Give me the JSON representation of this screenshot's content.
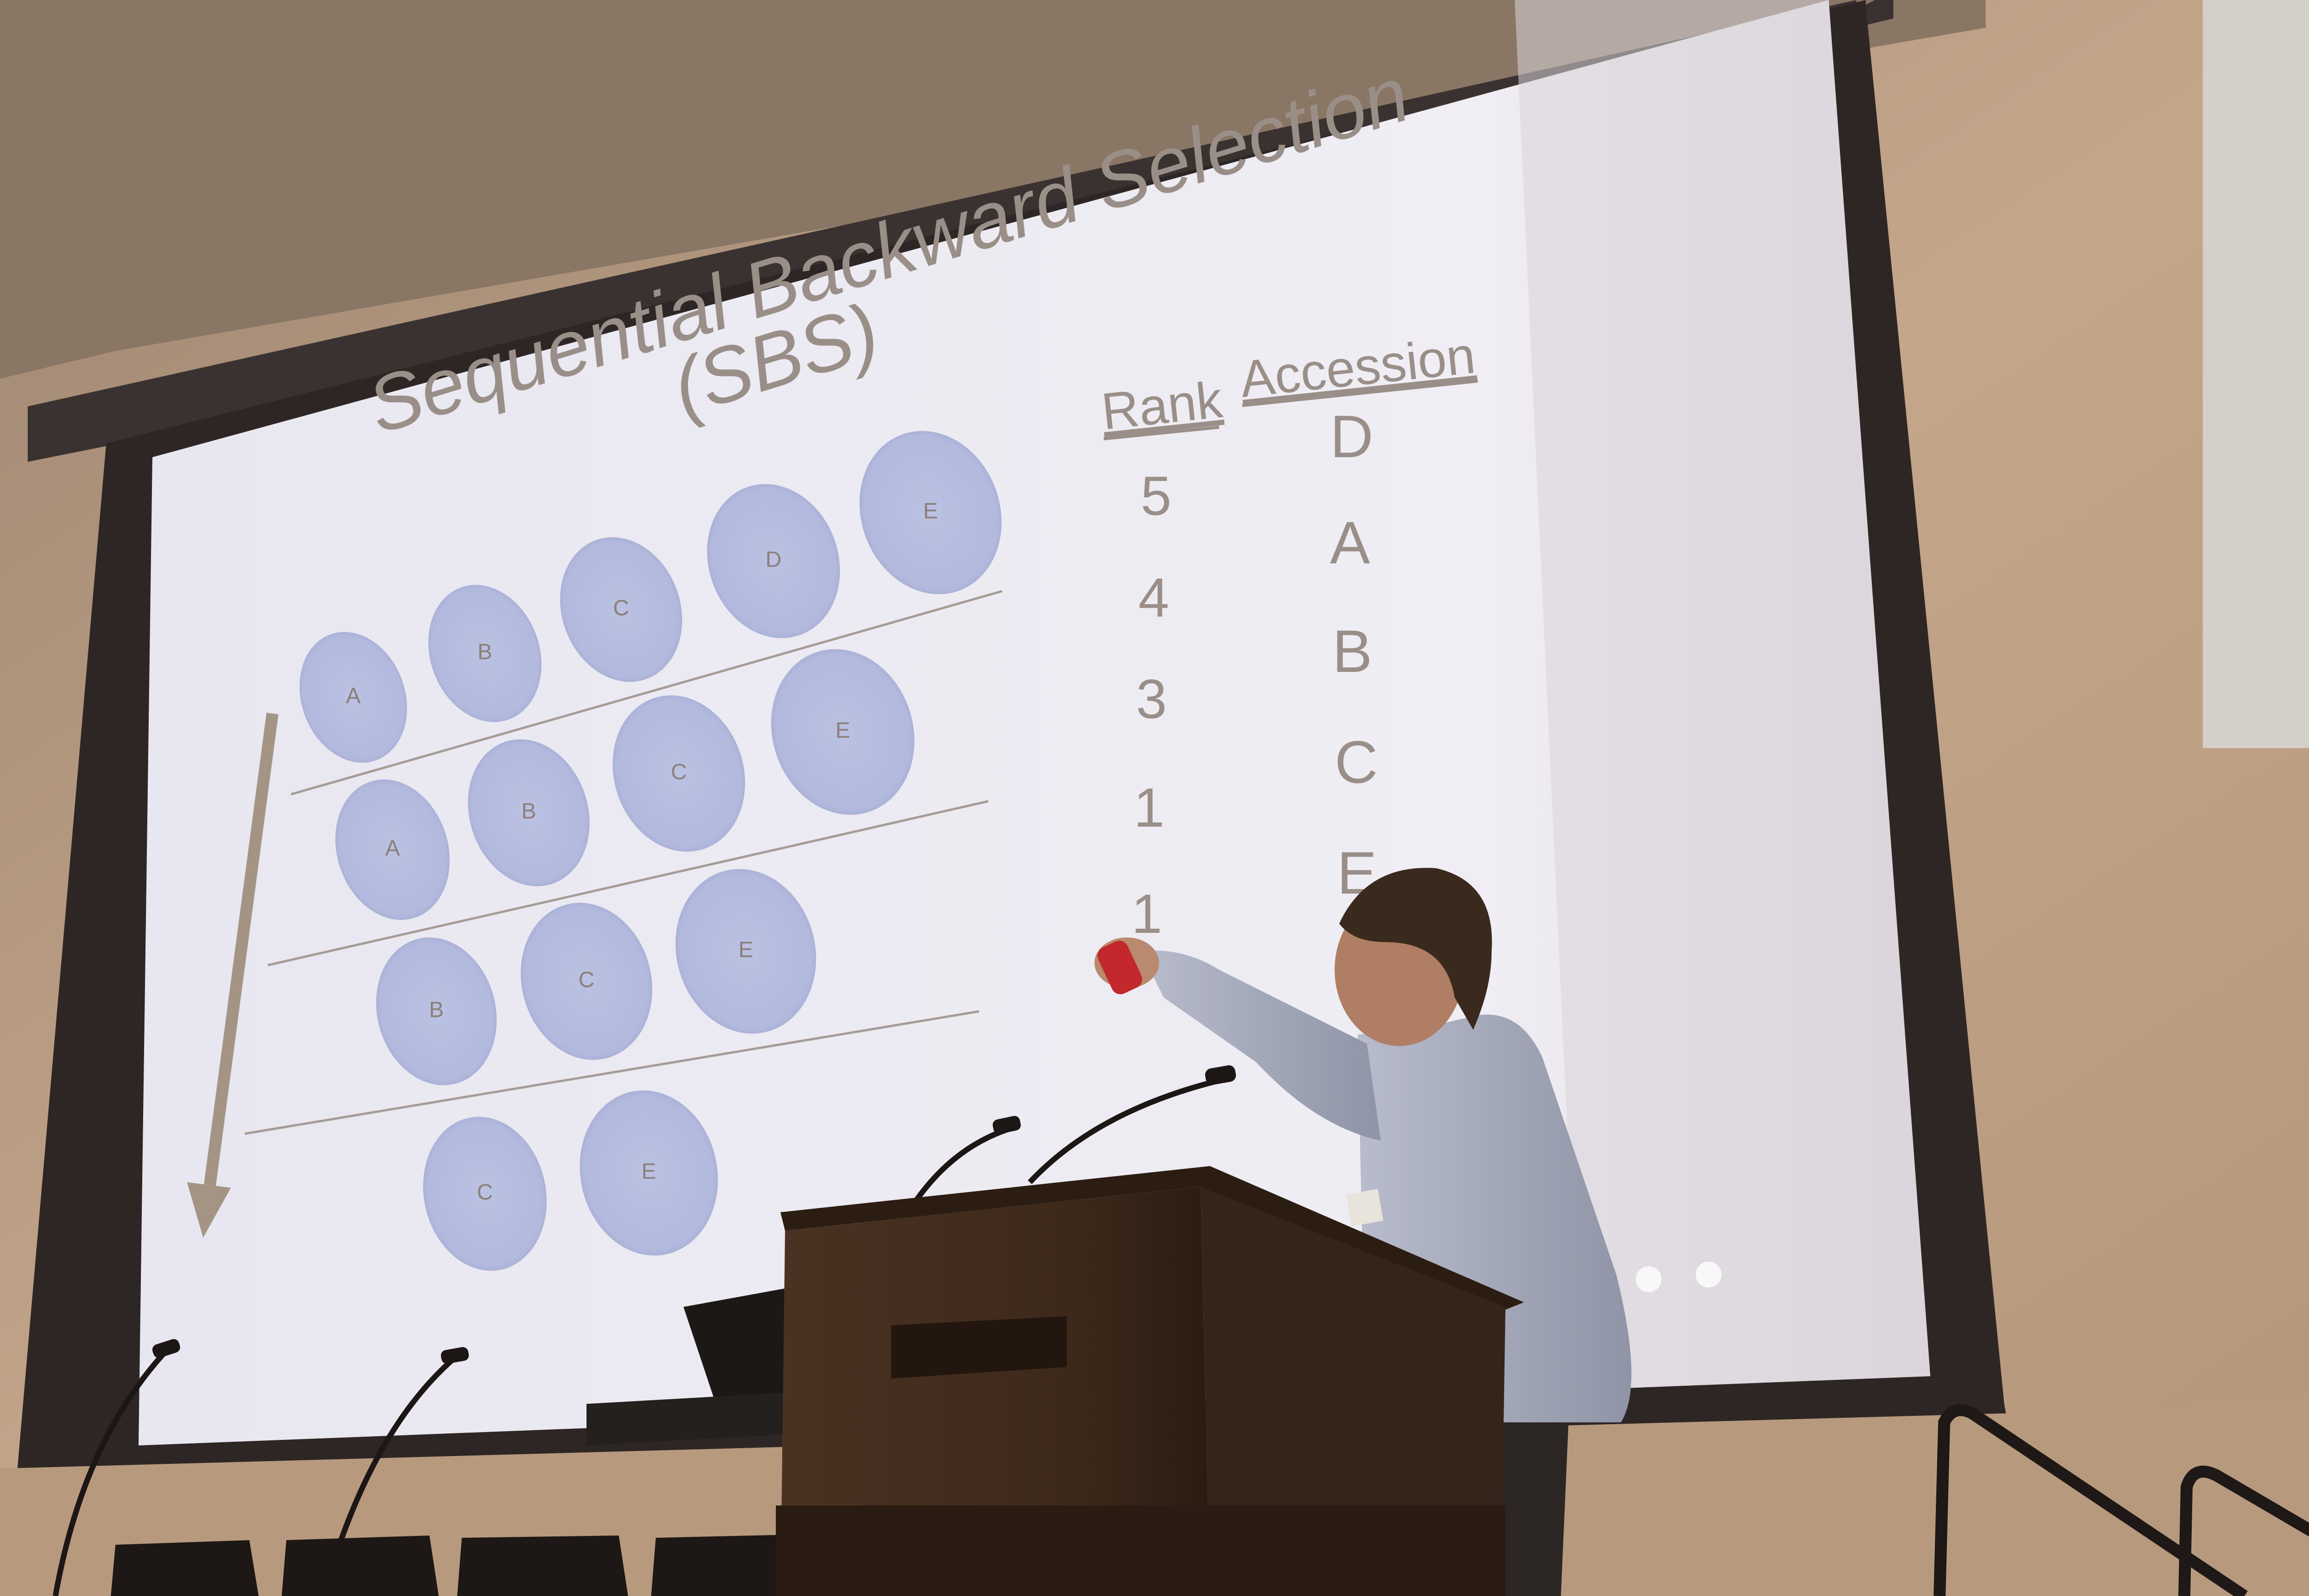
{
  "slide": {
    "title_line1": "Sequential Backward Selection",
    "title_line2": "(SBS)",
    "table": {
      "headers": [
        "Rank",
        "Accession"
      ],
      "ranks": [
        "5",
        "4",
        "3",
        "1",
        "1"
      ],
      "accessions": [
        "D",
        "A",
        "B",
        "C",
        "E"
      ]
    },
    "rows": [
      [
        "A",
        "B",
        "C",
        "D",
        "E"
      ],
      [
        "A",
        "B",
        "C",
        "E"
      ],
      [
        "B",
        "C",
        "E"
      ],
      [
        "C",
        "E"
      ]
    ]
  },
  "colors": {
    "screen": "#eceaf2",
    "disc": "#b6bde0",
    "disc_edge": "#a3abd3",
    "slide_text": "#9a8f88",
    "arrow": "#a49484",
    "wall": "#c6a98c",
    "podium": "#3e2a1c"
  }
}
